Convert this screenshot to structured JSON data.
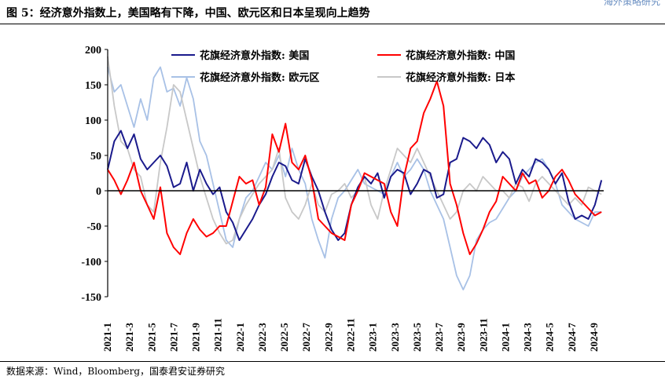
{
  "header": {
    "title": "图 5：经济意外指数上，美国略有下降，中国、欧元区和日本呈现向上趋势",
    "watermark": "海外策略研究"
  },
  "footer": {
    "source": "数据来源：Wind，Bloomberg，国泰君安证券研究"
  },
  "colors": {
    "us": "#1a1a8c",
    "china": "#ff0000",
    "euro": "#a8c1e6",
    "japan": "#c8c8c8",
    "axis": "#000000"
  },
  "chart_data": {
    "type": "line",
    "title": "",
    "xlabel": "",
    "ylabel": "",
    "ylim": [
      -150,
      200
    ],
    "yticks": [
      -150,
      -100,
      -50,
      0,
      50,
      100,
      150,
      200
    ],
    "x_start": "2021-01",
    "x_end": "2024-11",
    "x_unit": "months since 2021-01",
    "xlim": [
      0,
      22.6
    ],
    "x_tick_labels": [
      "2021-1",
      "2021-3",
      "2021-5",
      "2021-7",
      "2021-9",
      "2021-11",
      "2022-1",
      "2022-3",
      "2022-5",
      "2022-7",
      "2022-9",
      "2022-11",
      "2023-1",
      "2023-3",
      "2023-5",
      "2023-7",
      "2023-9",
      "2023-11",
      "2024-1",
      "2024-3",
      "2024-5",
      "2024-7",
      "2024-9"
    ],
    "legend_position": "top",
    "series": [
      {
        "name": "花旗经济意外指数: 美国",
        "key": "us",
        "x": [
          0,
          0.3,
          0.6,
          0.9,
          1.2,
          1.5,
          1.8,
          2.1,
          2.4,
          2.7,
          3.0,
          3.3,
          3.6,
          3.9,
          4.2,
          4.5,
          4.8,
          5.1,
          5.4,
          5.7,
          6.0,
          6.3,
          6.6,
          6.9,
          7.2,
          7.5,
          7.8,
          8.1,
          8.4,
          8.7,
          9.0,
          9.3,
          9.6,
          9.9,
          10.2,
          10.5,
          10.8,
          11.1,
          11.4,
          11.7,
          12.0,
          12.3,
          12.6,
          12.9,
          13.2,
          13.5,
          13.8,
          14.1,
          14.4,
          14.7,
          15.0,
          15.3,
          15.6,
          15.9,
          16.2,
          16.5,
          16.8,
          17.1,
          17.4,
          17.7,
          18.0,
          18.3,
          18.6,
          18.9,
          19.2,
          19.5,
          19.8,
          20.1,
          20.4,
          20.7,
          21.0,
          21.3,
          21.6,
          21.9,
          22.2,
          22.5
        ],
        "y": [
          30,
          70,
          85,
          60,
          80,
          45,
          30,
          40,
          50,
          35,
          5,
          10,
          40,
          0,
          30,
          10,
          -5,
          5,
          -30,
          -45,
          -70,
          -55,
          -40,
          -20,
          -5,
          20,
          40,
          35,
          15,
          10,
          45,
          20,
          0,
          -30,
          -55,
          -70,
          -60,
          -20,
          5,
          20,
          10,
          25,
          -10,
          20,
          30,
          25,
          -5,
          10,
          30,
          25,
          -10,
          -5,
          40,
          45,
          75,
          70,
          60,
          75,
          65,
          40,
          55,
          45,
          10,
          30,
          20,
          45,
          40,
          30,
          10,
          25,
          -15,
          -40,
          -35,
          -40,
          -20,
          15
        ]
      },
      {
        "name": "花旗经济意外指数: 中国",
        "key": "china",
        "x": [
          0,
          0.3,
          0.6,
          0.9,
          1.2,
          1.5,
          1.8,
          2.1,
          2.4,
          2.7,
          3.0,
          3.3,
          3.6,
          3.9,
          4.2,
          4.5,
          4.8,
          5.1,
          5.4,
          5.7,
          6.0,
          6.3,
          6.6,
          6.9,
          7.2,
          7.5,
          7.8,
          8.1,
          8.4,
          8.7,
          9.0,
          9.3,
          9.6,
          9.9,
          10.2,
          10.5,
          10.8,
          11.1,
          11.4,
          11.7,
          12.0,
          12.3,
          12.6,
          12.9,
          13.2,
          13.5,
          13.8,
          14.1,
          14.4,
          14.7,
          15.0,
          15.3,
          15.6,
          15.9,
          16.2,
          16.5,
          16.8,
          17.1,
          17.4,
          17.7,
          18.0,
          18.3,
          18.6,
          18.9,
          19.2,
          19.5,
          19.8,
          20.1,
          20.4,
          20.7,
          21.0,
          21.3,
          21.6,
          21.9,
          22.2,
          22.5
        ],
        "y": [
          30,
          15,
          -5,
          15,
          40,
          0,
          -20,
          -40,
          5,
          -60,
          -80,
          -90,
          -60,
          -40,
          -55,
          -65,
          -60,
          -50,
          -50,
          -15,
          20,
          10,
          15,
          -20,
          5,
          80,
          55,
          95,
          40,
          30,
          50,
          15,
          -40,
          -50,
          -60,
          -65,
          -70,
          -20,
          0,
          25,
          20,
          15,
          10,
          -30,
          -50,
          20,
          60,
          70,
          110,
          130,
          155,
          120,
          10,
          -20,
          -60,
          -90,
          -75,
          -55,
          -30,
          -15,
          20,
          10,
          0,
          25,
          10,
          15,
          -10,
          0,
          20,
          30,
          15,
          -5,
          -15,
          -25,
          -35,
          -30
        ]
      },
      {
        "name": "花旗经济意外指数: 欧元区",
        "key": "euro",
        "x": [
          0,
          0.3,
          0.6,
          0.9,
          1.2,
          1.5,
          1.8,
          2.1,
          2.4,
          2.7,
          3.0,
          3.3,
          3.6,
          3.9,
          4.2,
          4.5,
          4.8,
          5.1,
          5.4,
          5.7,
          6.0,
          6.3,
          6.6,
          6.9,
          7.2,
          7.5,
          7.8,
          8.1,
          8.4,
          8.7,
          9.0,
          9.3,
          9.6,
          9.9,
          10.2,
          10.5,
          10.8,
          11.1,
          11.4,
          11.7,
          12.0,
          12.3,
          12.6,
          12.9,
          13.2,
          13.5,
          13.8,
          14.1,
          14.4,
          14.7,
          15.0,
          15.3,
          15.6,
          15.9,
          16.2,
          16.5,
          16.8,
          17.1,
          17.4,
          17.7,
          18.0,
          18.3,
          18.6,
          18.9,
          19.2,
          19.5,
          19.8,
          20.1,
          20.4,
          20.7,
          21.0,
          21.3,
          21.6,
          21.9,
          22.2,
          22.5
        ],
        "y": [
          175,
          140,
          150,
          120,
          90,
          130,
          100,
          160,
          175,
          140,
          145,
          120,
          160,
          130,
          70,
          50,
          10,
          -30,
          -70,
          -80,
          -40,
          -10,
          0,
          20,
          40,
          30,
          50,
          20,
          60,
          30,
          10,
          -40,
          -70,
          -95,
          -40,
          -10,
          0,
          15,
          30,
          10,
          5,
          0,
          -5,
          20,
          40,
          20,
          30,
          45,
          30,
          0,
          -20,
          -40,
          -80,
          -120,
          -140,
          -120,
          -70,
          -55,
          -45,
          -40,
          -25,
          -10,
          0,
          20,
          30,
          40,
          45,
          30,
          10,
          -20,
          -30,
          -40,
          -45,
          -50,
          -30,
          -30
        ]
      },
      {
        "name": "花旗经济意外指数: 日本",
        "key": "japan",
        "x": [
          0,
          0.3,
          0.6,
          0.9,
          1.2,
          1.5,
          1.8,
          2.1,
          2.4,
          2.7,
          3.0,
          3.3,
          3.6,
          3.9,
          4.2,
          4.5,
          4.8,
          5.1,
          5.4,
          5.7,
          6.0,
          6.3,
          6.6,
          6.9,
          7.2,
          7.5,
          7.8,
          8.1,
          8.4,
          8.7,
          9.0,
          9.3,
          9.6,
          9.9,
          10.2,
          10.5,
          10.8,
          11.1,
          11.4,
          11.7,
          12.0,
          12.3,
          12.6,
          12.9,
          13.2,
          13.5,
          13.8,
          14.1,
          14.4,
          14.7,
          15.0,
          15.3,
          15.6,
          15.9,
          16.2,
          16.5,
          16.8,
          17.1,
          17.4,
          17.7,
          18.0,
          18.3,
          18.6,
          18.9,
          19.2,
          19.5,
          19.8,
          20.1,
          20.4,
          20.7,
          21.0,
          21.3,
          21.6,
          21.9,
          22.2,
          22.5
        ],
        "y": [
          190,
          120,
          70,
          60,
          30,
          20,
          -20,
          -30,
          40,
          90,
          150,
          140,
          100,
          60,
          20,
          -10,
          -40,
          -60,
          -75,
          -70,
          -40,
          -20,
          -5,
          10,
          20,
          30,
          60,
          -10,
          -30,
          -40,
          -20,
          10,
          -20,
          -30,
          -5,
          0,
          10,
          -10,
          0,
          20,
          -20,
          -40,
          0,
          30,
          60,
          50,
          40,
          60,
          40,
          20,
          0,
          -20,
          -40,
          -30,
          0,
          10,
          0,
          20,
          10,
          0,
          0,
          -10,
          10,
          5,
          -15,
          10,
          20,
          10,
          0,
          -10,
          -20,
          -10,
          -20,
          5,
          0,
          -5
        ]
      }
    ]
  }
}
